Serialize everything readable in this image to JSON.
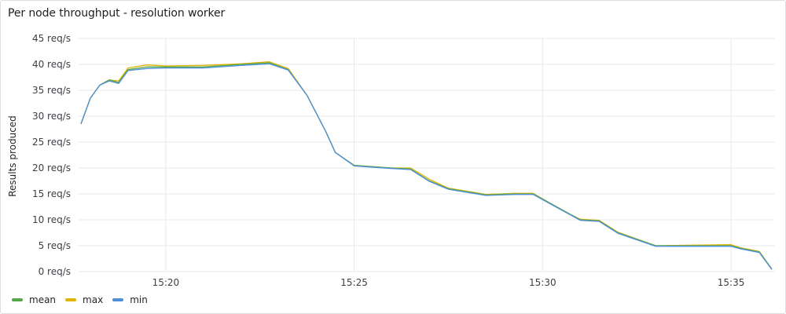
{
  "panel": {
    "title": "Per node throughput - resolution worker"
  },
  "chart_data": {
    "type": "line",
    "ylabel": "Results produced",
    "ylim": [
      0,
      45
    ],
    "yticks": [
      0,
      5,
      10,
      15,
      20,
      25,
      30,
      35,
      40,
      45
    ],
    "ytick_labels": [
      "0 req/s",
      "5 req/s",
      "10 req/s",
      "15 req/s",
      "20 req/s",
      "25 req/s",
      "30 req/s",
      "35 req/s",
      "40 req/s",
      "45 req/s"
    ],
    "xlim": [
      "15:17:40",
      "15:36:10"
    ],
    "xticks": [
      "15:20",
      "15:25",
      "15:30",
      "15:35"
    ],
    "grid": true,
    "legend_position": "bottom-left",
    "x": [
      "15:17:45",
      "15:18:00",
      "15:18:15",
      "15:18:30",
      "15:18:45",
      "15:19:00",
      "15:19:30",
      "15:20:00",
      "15:21:00",
      "15:22:00",
      "15:22:45",
      "15:23:15",
      "15:23:45",
      "15:24:15",
      "15:24:30",
      "15:25:00",
      "15:26:00",
      "15:26:30",
      "15:27:00",
      "15:27:30",
      "15:28:30",
      "15:29:15",
      "15:29:45",
      "15:30:15",
      "15:30:45",
      "15:31:00",
      "15:31:30",
      "15:32:00",
      "15:33:00",
      "15:34:00",
      "15:35:00",
      "15:35:15",
      "15:35:45",
      "15:36:05"
    ],
    "series": [
      {
        "name": "mean",
        "color": "#56a64b",
        "values": [
          28.5,
          33.5,
          36,
          37,
          36.5,
          39,
          39.5,
          39.5,
          39.5,
          40,
          40.3,
          39,
          34,
          27,
          23,
          20.5,
          20,
          19.8,
          17.5,
          16,
          14.8,
          15,
          15,
          13,
          11,
          10,
          9.8,
          7.5,
          5,
          5,
          5,
          4.5,
          3.8,
          0.5
        ]
      },
      {
        "name": "max",
        "color": "#e0b400",
        "values": [
          28.5,
          33.5,
          36,
          37,
          36.8,
          39.3,
          39.9,
          39.7,
          39.8,
          40.1,
          40.5,
          39.2,
          34,
          27,
          23,
          20.5,
          20,
          20,
          17.8,
          16.1,
          14.9,
          15.1,
          15.1,
          13,
          11,
          10.1,
          9.9,
          7.6,
          5,
          5.1,
          5.2,
          4.6,
          3.9,
          0.5
        ]
      },
      {
        "name": "min",
        "color": "#4f8fd9",
        "values": [
          28.5,
          33.5,
          36,
          36.8,
          36.3,
          38.8,
          39.2,
          39.3,
          39.3,
          39.8,
          40.1,
          38.9,
          34,
          27,
          23,
          20.4,
          19.9,
          19.7,
          17.4,
          15.9,
          14.7,
          14.9,
          14.9,
          12.9,
          10.9,
          9.9,
          9.7,
          7.4,
          4.9,
          4.9,
          4.9,
          4.4,
          3.7,
          0.4
        ]
      }
    ]
  },
  "legend": {
    "items": [
      {
        "label": "mean",
        "color": "#56a64b"
      },
      {
        "label": "max",
        "color": "#e0b400"
      },
      {
        "label": "min",
        "color": "#4f8fd9"
      }
    ]
  }
}
